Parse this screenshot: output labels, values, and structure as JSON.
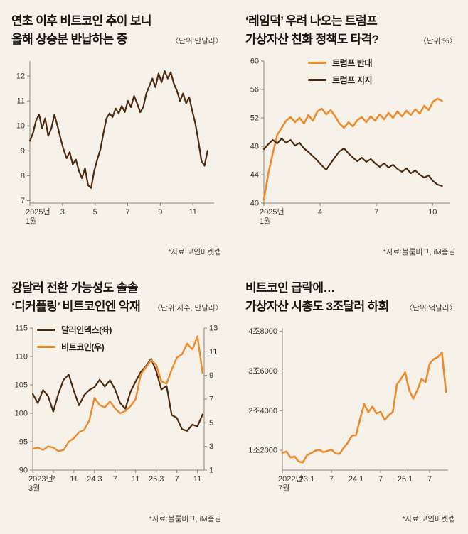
{
  "page": {
    "background": "#f7f2e9",
    "accent_orange": "#ED8B2B",
    "accent_brown": "#4E2B10"
  },
  "panels": [
    {
      "title_lines": [
        "연초 이후 비트코인 추이 보니",
        "올해 상승분 반납하는 중"
      ],
      "unit": "〈단위:만달러〉",
      "source": "*자료:코인마켓캡"
    },
    {
      "title_lines": [
        "‘레임덕’ 우려 나오는 트럼프",
        "가상자산 친화 정책도 타격?"
      ],
      "unit": "〈단위:%〉",
      "source": "*자료:블룸버그, iM증권"
    },
    {
      "title_lines": [
        "강달러 전환 가능성도 솔솔",
        "‘디커플링’ 비트코인엔 악재"
      ],
      "unit": "〈단위:지수, 만달러〉",
      "source": "*자료:블룸버그, iM증권"
    },
    {
      "title_lines": [
        "비트코인 급락에…",
        "가상자산 시총도 3조달러 하회"
      ],
      "unit": "〈단위:억달러〉",
      "source": "*자료:코인마켓캡"
    }
  ],
  "chart_data": [
    {
      "id": "bitcoin-2025-trend",
      "type": "line",
      "title": "연초 이후 비트코인 추이 보니 올해 상승분 반납하는 중",
      "unit": "만달러",
      "xlim": [
        0,
        11.3
      ],
      "xticks": [
        {
          "pos": 0,
          "label": [
            "2025년",
            "1월"
          ],
          "anchor": "start"
        },
        {
          "pos": 2,
          "label": "3"
        },
        {
          "pos": 4,
          "label": "5"
        },
        {
          "pos": 6,
          "label": "7"
        },
        {
          "pos": 8,
          "label": "9"
        },
        {
          "pos": 10,
          "label": "11"
        }
      ],
      "ylim": [
        6.9,
        12.6
      ],
      "yticks": [
        {
          "v": 7,
          "label": "7"
        },
        {
          "v": 8,
          "label": "8"
        },
        {
          "v": 9,
          "label": "9"
        },
        {
          "v": 10,
          "label": "10"
        },
        {
          "v": 11,
          "label": "11"
        },
        {
          "v": 12,
          "label": "12"
        }
      ],
      "legend_position": "none",
      "series": [
        {
          "name": "비트코인",
          "color": "#4E2B10",
          "width": 2.2,
          "axis": "left",
          "x_start": 0,
          "x_end": 10.9,
          "values": [
            9.4,
            9.7,
            10.2,
            10.45,
            9.9,
            10.3,
            9.6,
            9.9,
            10.45,
            10.0,
            9.5,
            9.05,
            8.7,
            8.95,
            8.45,
            8.65,
            8.2,
            7.9,
            8.3,
            7.62,
            7.5,
            8.2,
            8.65,
            9.05,
            9.7,
            10.3,
            10.5,
            10.35,
            10.7,
            10.5,
            10.8,
            10.55,
            11.0,
            10.75,
            11.2,
            10.9,
            10.55,
            10.75,
            11.3,
            11.6,
            11.9,
            11.55,
            12.1,
            11.75,
            12.2,
            11.9,
            12.15,
            11.7,
            11.4,
            11.0,
            11.3,
            10.9,
            11.15,
            10.6,
            10.1,
            9.4,
            8.6,
            8.4,
            9.0
          ]
        }
      ]
    },
    {
      "id": "trump-approval",
      "type": "line",
      "title": "‘레임덕’ 우려 나오는 트럼프 가상자산 친화 정책도 타격?",
      "unit": "%",
      "xlim": [
        0,
        9.9
      ],
      "xticks": [
        {
          "pos": 0,
          "label": [
            "2025년",
            "1월"
          ],
          "anchor": "start"
        },
        {
          "pos": 3,
          "label": "4"
        },
        {
          "pos": 6,
          "label": "7"
        },
        {
          "pos": 9,
          "label": "10"
        }
      ],
      "ylim": [
        40,
        60
      ],
      "yticks": [
        {
          "v": 40,
          "label": "40"
        },
        {
          "v": 44,
          "label": "44"
        },
        {
          "v": 48,
          "label": "48"
        },
        {
          "v": 52,
          "label": "52"
        },
        {
          "v": 56,
          "label": "56"
        },
        {
          "v": 60,
          "label": "60"
        }
      ],
      "legend_position": "top-center",
      "series": [
        {
          "name": "트럼프 반대",
          "color": "#ED8B2B",
          "width": 2.6,
          "axis": "left",
          "x_start": 0,
          "x_end": 9.5,
          "values": [
            40.5,
            44.2,
            47.0,
            49.6,
            50.6,
            51.6,
            52.1,
            51.4,
            52.0,
            51.2,
            52.4,
            51.6,
            52.9,
            53.3,
            52.5,
            53.1,
            52.2,
            51.2,
            50.6,
            51.4,
            50.8,
            51.7,
            52.1,
            51.4,
            52.2,
            51.6,
            52.5,
            51.8,
            52.7,
            52.0,
            52.9,
            52.2,
            53.0,
            52.4,
            53.2,
            52.6,
            53.7,
            53.1,
            54.3,
            54.7,
            54.4
          ]
        },
        {
          "name": "트럼프 지지",
          "color": "#4E2B10",
          "width": 2.2,
          "axis": "left",
          "x_start": 0,
          "x_end": 9.5,
          "values": [
            47.6,
            48.3,
            48.9,
            48.4,
            49.1,
            48.5,
            48.9,
            48.1,
            48.5,
            47.7,
            47.2,
            46.6,
            46.0,
            45.3,
            44.7,
            45.6,
            46.5,
            47.3,
            47.7,
            47.0,
            46.4,
            45.9,
            46.4,
            45.8,
            46.2,
            45.6,
            45.1,
            45.6,
            45.0,
            45.4,
            44.8,
            44.4,
            44.9,
            44.2,
            44.6,
            44.0,
            43.6,
            43.9,
            43.1,
            42.6,
            42.4
          ]
        }
      ]
    },
    {
      "id": "dollar-index-vs-bitcoin",
      "type": "line",
      "title": "강달러 전환 가능성도 솔솔 ‘디커플링’ 비트코인엔 악재",
      "unit": "지수, 만달러",
      "xlim": [
        0,
        33.3
      ],
      "xticks": [
        {
          "pos": 0,
          "label": [
            "2023년",
            "3월"
          ],
          "anchor": "start"
        },
        {
          "pos": 4,
          "label": "7"
        },
        {
          "pos": 8,
          "label": "11"
        },
        {
          "pos": 12,
          "label": "24.3"
        },
        {
          "pos": 16,
          "label": "7"
        },
        {
          "pos": 20,
          "label": "11"
        },
        {
          "pos": 24,
          "label": "25.3"
        },
        {
          "pos": 28,
          "label": "7"
        },
        {
          "pos": 32,
          "label": "11"
        }
      ],
      "ylim": [
        90,
        115
      ],
      "yticks": [
        {
          "v": 90,
          "label": "90"
        },
        {
          "v": 95,
          "label": "95"
        },
        {
          "v": 100,
          "label": "100"
        },
        {
          "v": 105,
          "label": "105"
        },
        {
          "v": 110,
          "label": "110"
        },
        {
          "v": 115,
          "label": "115"
        }
      ],
      "y2lim": [
        1,
        13
      ],
      "y2ticks": [
        {
          "v": 1,
          "label": "1"
        },
        {
          "v": 3,
          "label": "3"
        },
        {
          "v": 5,
          "label": "5"
        },
        {
          "v": 7,
          "label": "7"
        },
        {
          "v": 9,
          "label": "9"
        },
        {
          "v": 11,
          "label": "11"
        },
        {
          "v": 13,
          "label": "13"
        }
      ],
      "legend_position": "top-left",
      "series": [
        {
          "name": "달러인덱스(좌)",
          "color": "#4E2B10",
          "width": 2.2,
          "axis": "left",
          "x_start": 0,
          "x_end": 33,
          "values": [
            103.4,
            101.8,
            104.1,
            103.0,
            100.3,
            103.5,
            105.9,
            106.8,
            103.9,
            101.4,
            103.2,
            104.1,
            104.6,
            105.9,
            104.7,
            105.8,
            104.2,
            101.8,
            100.8,
            103.8,
            105.6,
            107.3,
            108.3,
            109.6,
            107.4,
            104.2,
            104.8,
            99.7,
            99.2,
            97.2,
            96.9,
            98.0,
            97.7,
            99.8
          ]
        },
        {
          "name": "비트코인(우)",
          "color": "#ED8B2B",
          "width": 2.4,
          "axis": "right",
          "x_start": 0,
          "x_end": 33,
          "values": [
            2.8,
            2.9,
            2.7,
            3.0,
            2.9,
            2.6,
            2.7,
            3.4,
            3.7,
            4.2,
            4.4,
            5.2,
            7.1,
            6.5,
            6.3,
            6.8,
            6.2,
            5.8,
            6.0,
            6.4,
            7.0,
            9.1,
            9.7,
            10.3,
            9.9,
            8.5,
            8.3,
            9.5,
            10.5,
            10.8,
            11.7,
            11.2,
            12.3,
            9.2
          ]
        }
      ]
    },
    {
      "id": "crypto-market-cap",
      "type": "line",
      "title": "비트코인 급락에… 가상자산 시총도 3조달러 하회",
      "unit": "억달러",
      "xlim": [
        0,
        40.5
      ],
      "xticks": [
        {
          "pos": 0,
          "label": [
            "2022년",
            "7월"
          ],
          "anchor": "start"
        },
        {
          "pos": 6,
          "label": "23.1"
        },
        {
          "pos": 12,
          "label": "7"
        },
        {
          "pos": 18,
          "label": "24.1"
        },
        {
          "pos": 24,
          "label": "7"
        },
        {
          "pos": 30,
          "label": "25.1"
        },
        {
          "pos": 36,
          "label": "7"
        }
      ],
      "ylim": [
        6000,
        49000
      ],
      "yticks": [
        {
          "v": 12000,
          "label": "1조2000"
        },
        {
          "v": 24000,
          "label": "2조4000"
        },
        {
          "v": 36000,
          "label": "3조6000"
        },
        {
          "v": 48000,
          "label": "4조8000"
        }
      ],
      "legend_position": "none",
      "series": [
        {
          "name": "가상자산 시가총액",
          "color": "#ED8B2B",
          "width": 2.6,
          "axis": "left",
          "x_start": 0,
          "x_end": 40,
          "values": [
            11200,
            11600,
            9800,
            10100,
            8600,
            8300,
            10500,
            11100,
            11800,
            12200,
            11400,
            11800,
            12200,
            11000,
            10900,
            12800,
            14300,
            16400,
            16600,
            21500,
            26000,
            23500,
            25200,
            23200,
            23600,
            21200,
            22600,
            23600,
            32000,
            33600,
            35600,
            30200,
            27600,
            30300,
            33600,
            32600,
            38200,
            39600,
            40200,
            41600,
            29600
          ]
        }
      ]
    }
  ]
}
